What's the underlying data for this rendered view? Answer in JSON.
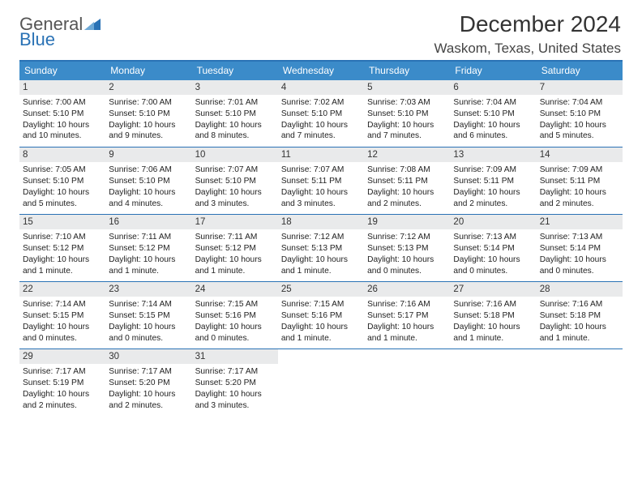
{
  "logo": {
    "line1": "General",
    "line2": "Blue",
    "triangle_color": "#2a72b5",
    "text_color_1": "#555",
    "text_color_2": "#2a72b5"
  },
  "title": "December 2024",
  "location": "Waskom, Texas, United States",
  "colors": {
    "header_bg": "#3b8bc9",
    "accent_border": "#2a72b5",
    "daynum_bg": "#e9eaeb",
    "background": "#ffffff"
  },
  "typography": {
    "title_fontsize": 28,
    "location_fontsize": 17,
    "dayheader_fontsize": 12,
    "cell_fontsize": 10.2
  },
  "day_names": [
    "Sunday",
    "Monday",
    "Tuesday",
    "Wednesday",
    "Thursday",
    "Friday",
    "Saturday"
  ],
  "weeks": [
    [
      {
        "n": "1",
        "sr": "7:00 AM",
        "ss": "5:10 PM",
        "dl": "10 hours and 10 minutes."
      },
      {
        "n": "2",
        "sr": "7:00 AM",
        "ss": "5:10 PM",
        "dl": "10 hours and 9 minutes."
      },
      {
        "n": "3",
        "sr": "7:01 AM",
        "ss": "5:10 PM",
        "dl": "10 hours and 8 minutes."
      },
      {
        "n": "4",
        "sr": "7:02 AM",
        "ss": "5:10 PM",
        "dl": "10 hours and 7 minutes."
      },
      {
        "n": "5",
        "sr": "7:03 AM",
        "ss": "5:10 PM",
        "dl": "10 hours and 7 minutes."
      },
      {
        "n": "6",
        "sr": "7:04 AM",
        "ss": "5:10 PM",
        "dl": "10 hours and 6 minutes."
      },
      {
        "n": "7",
        "sr": "7:04 AM",
        "ss": "5:10 PM",
        "dl": "10 hours and 5 minutes."
      }
    ],
    [
      {
        "n": "8",
        "sr": "7:05 AM",
        "ss": "5:10 PM",
        "dl": "10 hours and 5 minutes."
      },
      {
        "n": "9",
        "sr": "7:06 AM",
        "ss": "5:10 PM",
        "dl": "10 hours and 4 minutes."
      },
      {
        "n": "10",
        "sr": "7:07 AM",
        "ss": "5:10 PM",
        "dl": "10 hours and 3 minutes."
      },
      {
        "n": "11",
        "sr": "7:07 AM",
        "ss": "5:11 PM",
        "dl": "10 hours and 3 minutes."
      },
      {
        "n": "12",
        "sr": "7:08 AM",
        "ss": "5:11 PM",
        "dl": "10 hours and 2 minutes."
      },
      {
        "n": "13",
        "sr": "7:09 AM",
        "ss": "5:11 PM",
        "dl": "10 hours and 2 minutes."
      },
      {
        "n": "14",
        "sr": "7:09 AM",
        "ss": "5:11 PM",
        "dl": "10 hours and 2 minutes."
      }
    ],
    [
      {
        "n": "15",
        "sr": "7:10 AM",
        "ss": "5:12 PM",
        "dl": "10 hours and 1 minute."
      },
      {
        "n": "16",
        "sr": "7:11 AM",
        "ss": "5:12 PM",
        "dl": "10 hours and 1 minute."
      },
      {
        "n": "17",
        "sr": "7:11 AM",
        "ss": "5:12 PM",
        "dl": "10 hours and 1 minute."
      },
      {
        "n": "18",
        "sr": "7:12 AM",
        "ss": "5:13 PM",
        "dl": "10 hours and 1 minute."
      },
      {
        "n": "19",
        "sr": "7:12 AM",
        "ss": "5:13 PM",
        "dl": "10 hours and 0 minutes."
      },
      {
        "n": "20",
        "sr": "7:13 AM",
        "ss": "5:14 PM",
        "dl": "10 hours and 0 minutes."
      },
      {
        "n": "21",
        "sr": "7:13 AM",
        "ss": "5:14 PM",
        "dl": "10 hours and 0 minutes."
      }
    ],
    [
      {
        "n": "22",
        "sr": "7:14 AM",
        "ss": "5:15 PM",
        "dl": "10 hours and 0 minutes."
      },
      {
        "n": "23",
        "sr": "7:14 AM",
        "ss": "5:15 PM",
        "dl": "10 hours and 0 minutes."
      },
      {
        "n": "24",
        "sr": "7:15 AM",
        "ss": "5:16 PM",
        "dl": "10 hours and 0 minutes."
      },
      {
        "n": "25",
        "sr": "7:15 AM",
        "ss": "5:16 PM",
        "dl": "10 hours and 1 minute."
      },
      {
        "n": "26",
        "sr": "7:16 AM",
        "ss": "5:17 PM",
        "dl": "10 hours and 1 minute."
      },
      {
        "n": "27",
        "sr": "7:16 AM",
        "ss": "5:18 PM",
        "dl": "10 hours and 1 minute."
      },
      {
        "n": "28",
        "sr": "7:16 AM",
        "ss": "5:18 PM",
        "dl": "10 hours and 1 minute."
      }
    ],
    [
      {
        "n": "29",
        "sr": "7:17 AM",
        "ss": "5:19 PM",
        "dl": "10 hours and 2 minutes."
      },
      {
        "n": "30",
        "sr": "7:17 AM",
        "ss": "5:20 PM",
        "dl": "10 hours and 2 minutes."
      },
      {
        "n": "31",
        "sr": "7:17 AM",
        "ss": "5:20 PM",
        "dl": "10 hours and 3 minutes."
      },
      null,
      null,
      null,
      null
    ]
  ],
  "labels": {
    "sunrise": "Sunrise:",
    "sunset": "Sunset:",
    "daylight": "Daylight:"
  }
}
